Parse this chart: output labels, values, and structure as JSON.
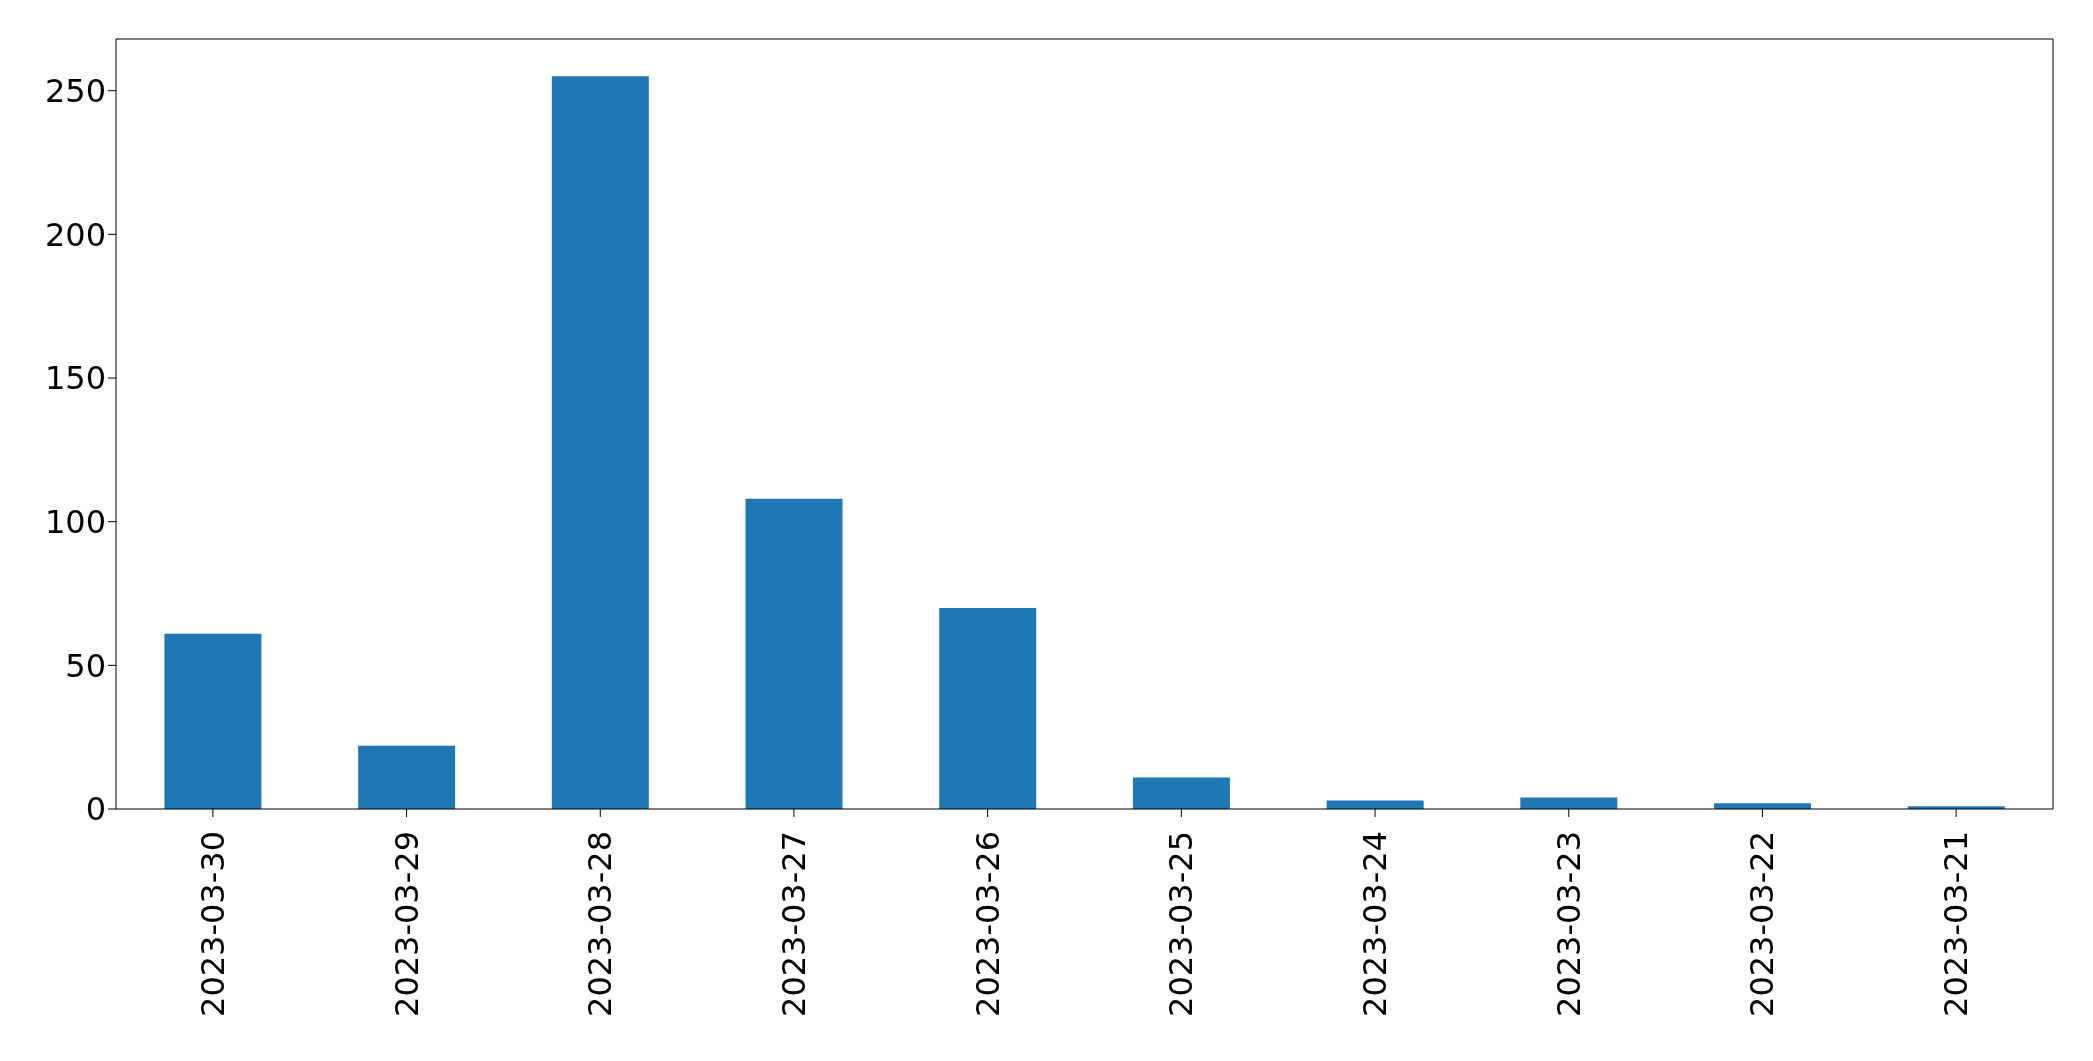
{
  "chart_data": {
    "type": "bar",
    "categories": [
      "2023-03-30",
      "2023-03-29",
      "2023-03-28",
      "2023-03-27",
      "2023-03-26",
      "2023-03-25",
      "2023-03-24",
      "2023-03-23",
      "2023-03-22",
      "2023-03-21"
    ],
    "values": [
      61,
      22,
      255,
      108,
      70,
      11,
      3,
      4,
      2,
      1
    ],
    "color": "#1f77b4",
    "ylim": [
      0,
      268
    ],
    "yticks": [
      0,
      50,
      100,
      150,
      200,
      250
    ],
    "grid": false
  }
}
